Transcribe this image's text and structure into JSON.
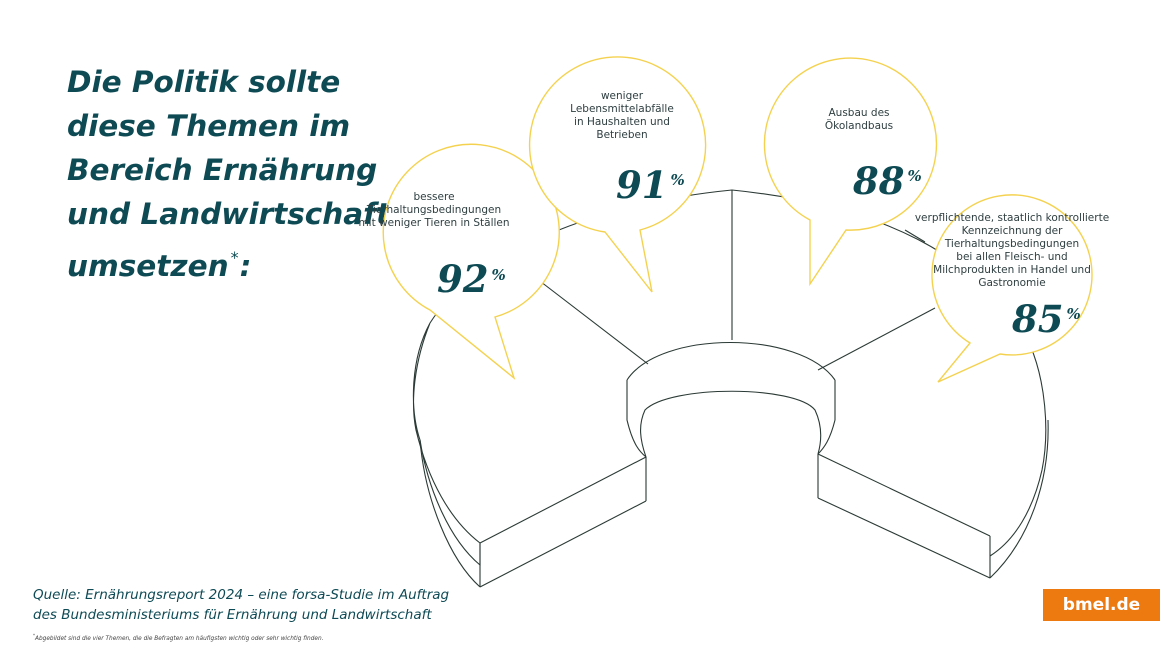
{
  "title": {
    "text": "Die Politik sollte diese Themen im Bereich Ernährung und Landwirtschaft umsetzen",
    "footnote_marker": "*",
    "suffix": ":"
  },
  "chart_data": {
    "type": "pie",
    "unit": "%",
    "categories": [
      "bessere Tierhaltungsbedingungen mit weniger Tieren in Ställen",
      "weniger Lebensmittelabfälle in Haushalten und Betrieben",
      "Ausbau des Ökolandbaus",
      "verpflichtende, staatlich kontrollierte Kennzeichnung der Tierhaltungsbedingungen bei allen Fleisch- und Milchprodukten in Handel und Gastronomie"
    ],
    "values": [
      92,
      91,
      88,
      85
    ],
    "items": [
      {
        "label": "bessere Tierhaltungsbedingungen mit weniger Tieren in Ställen",
        "value": 92,
        "value_text": "92",
        "pct": "%"
      },
      {
        "label": "weniger Lebensmittelabfälle in Haushalten und Betrieben",
        "value": 91,
        "value_text": "91",
        "pct": "%"
      },
      {
        "label": "Ausbau des Ökolandbaus",
        "value": 88,
        "value_text": "88",
        "pct": "%"
      },
      {
        "label": "verpflichtende, staatlich kontrollierte Kennzeichnung der Tierhaltungsbedingungen bei allen Fleisch- und Milchprodukten in Handel und Gastronomie",
        "value": 85,
        "value_text": "85",
        "pct": "%"
      }
    ],
    "bubble_color": "#f4d250",
    "text_color": "#0d4a53"
  },
  "source": {
    "line1": "Quelle: Ernährungsreport 2024 – eine forsa-Studie im Auftrag",
    "line2": "des Bundesministeriums für Ernährung und Landwirtschaft"
  },
  "footnote": {
    "marker": "*",
    "text": "Abgebildet sind die vier Themen, die die Befragten am häufigsten wichtig oder sehr wichtig finden."
  },
  "brand": {
    "text": "bmel.de",
    "color": "#ec7a10"
  }
}
